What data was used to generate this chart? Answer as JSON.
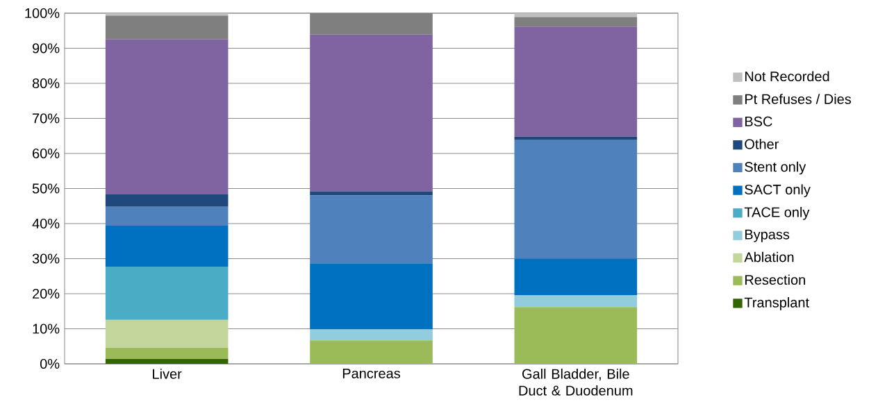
{
  "chart_data": {
    "type": "bar",
    "stacked": true,
    "categories": [
      "Liver",
      "Pancreas",
      "Gall Bladder, Bile Duct & Duodenum"
    ],
    "series": [
      {
        "name": "Transplant",
        "color": "#336600",
        "values": [
          1.4,
          0,
          0
        ]
      },
      {
        "name": "Resection",
        "color": "#9bbb59",
        "values": [
          3.2,
          6.7,
          16.2
        ]
      },
      {
        "name": "Ablation",
        "color": "#c3d69b",
        "values": [
          7.9,
          0,
          0
        ]
      },
      {
        "name": "Bypass",
        "color": "#93cddd",
        "values": [
          0,
          3.1,
          3.4
        ]
      },
      {
        "name": "TACE only",
        "color": "#4bacc6",
        "values": [
          15.2,
          0,
          0
        ]
      },
      {
        "name": "SACT only",
        "color": "#0070c0",
        "values": [
          11.7,
          18.7,
          10.4
        ]
      },
      {
        "name": "Stent only",
        "color": "#4f81bd",
        "values": [
          5.4,
          19.5,
          33.8
        ]
      },
      {
        "name": "Other",
        "color": "#1f497d",
        "values": [
          3.5,
          1.2,
          1.0
        ]
      },
      {
        "name": "BSC",
        "color": "#8064a2",
        "values": [
          44.2,
          44.7,
          31.4
        ]
      },
      {
        "name": "Pt Refuses / Dies",
        "color": "#7f7f7f",
        "values": [
          6.8,
          6.1,
          2.7
        ]
      },
      {
        "name": "Not Recorded",
        "color": "#bfbfbf",
        "values": [
          0.7,
          0,
          1.1
        ]
      }
    ],
    "ylim": [
      0,
      100
    ],
    "yticks": [
      {
        "value": 0,
        "label": "0%"
      },
      {
        "value": 10,
        "label": "10%"
      },
      {
        "value": 20,
        "label": "20%"
      },
      {
        "value": 30,
        "label": "30%"
      },
      {
        "value": 40,
        "label": "40%"
      },
      {
        "value": 50,
        "label": "50%"
      },
      {
        "value": 60,
        "label": "60%"
      },
      {
        "value": 70,
        "label": "70%"
      },
      {
        "value": 80,
        "label": "80%"
      },
      {
        "value": 90,
        "label": "90%"
      },
      {
        "value": 100,
        "label": "100%"
      }
    ],
    "grid": "y",
    "legend": "right"
  }
}
